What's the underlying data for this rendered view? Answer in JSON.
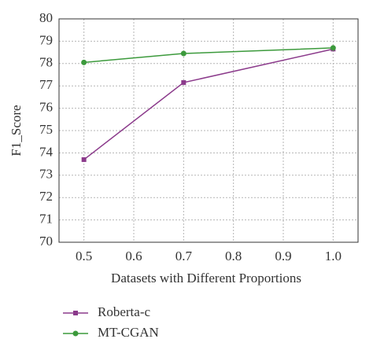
{
  "chart_data": {
    "type": "line",
    "x_label": "Datasets with Different Proportions",
    "y_label": "F1_Score",
    "x": [
      0.5,
      0.7,
      1.0
    ],
    "series": [
      {
        "name": "Roberta-c",
        "color": "#8b3a8b",
        "marker": "square",
        "values": [
          73.7,
          77.15,
          78.65
        ]
      },
      {
        "name": "MT-CGAN",
        "color": "#3c9a3c",
        "marker": "circle",
        "values": [
          78.05,
          78.45,
          78.7
        ]
      }
    ],
    "xlim": [
      0.45,
      1.05
    ],
    "xticks": [
      0.5,
      0.6,
      0.7,
      0.8,
      0.9,
      {
        "value": 1.0,
        "label": "1.0"
      }
    ],
    "ylim": [
      70,
      80
    ],
    "yticks": [
      70,
      71,
      72,
      73,
      74,
      75,
      76,
      77,
      78,
      79,
      80
    ],
    "grid": true,
    "legend": "bottom-left"
  }
}
